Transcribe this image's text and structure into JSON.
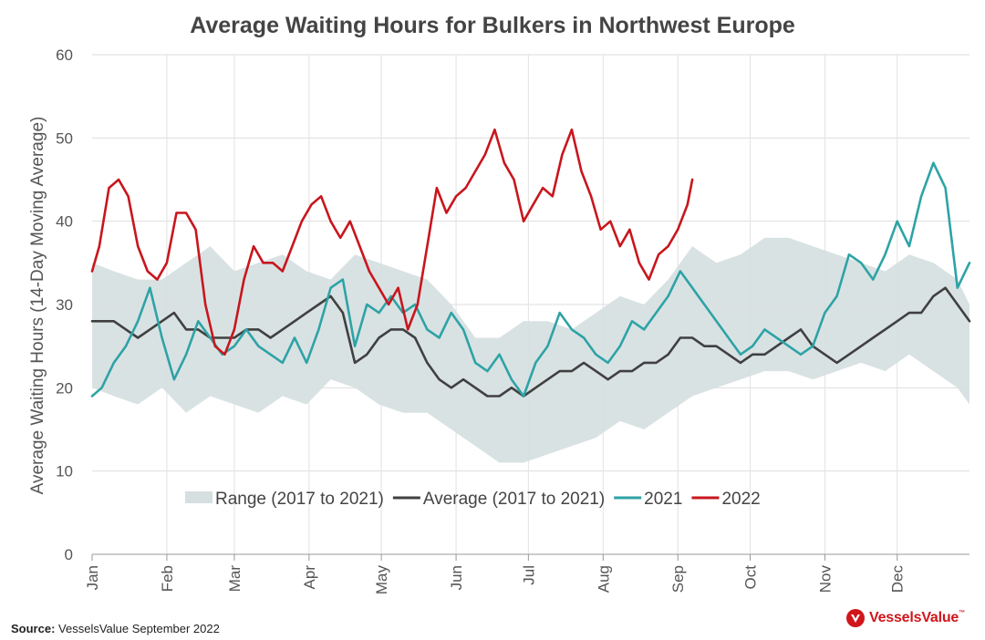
{
  "chart_data": {
    "type": "line",
    "title": "Average Waiting Hours for Bulkers in Northwest Europe",
    "ylabel": "Average Waiting Hours (14-Day Moving Average)",
    "xlabel": "",
    "ylim": [
      0,
      60
    ],
    "yticks": [
      0,
      10,
      20,
      30,
      40,
      50,
      60
    ],
    "xlim": [
      1,
      365
    ],
    "month_ticks": [
      {
        "label": "Jan",
        "day": 1
      },
      {
        "label": "Feb",
        "day": 32
      },
      {
        "label": "Mar",
        "day": 60
      },
      {
        "label": "Apr",
        "day": 91
      },
      {
        "label": "May",
        "day": 121
      },
      {
        "label": "Jun",
        "day": 152
      },
      {
        "label": "Jul",
        "day": 182
      },
      {
        "label": "Aug",
        "day": 213
      },
      {
        "label": "Sep",
        "day": 244
      },
      {
        "label": "Oct",
        "day": 274
      },
      {
        "label": "Nov",
        "day": 305
      },
      {
        "label": "Dec",
        "day": 335
      }
    ],
    "grid": true,
    "legend_position": "inside-bottom",
    "range": {
      "name": "Range (2017 to 2021)",
      "color": "#d5dfe0",
      "x": [
        1,
        10,
        20,
        30,
        40,
        50,
        60,
        70,
        80,
        90,
        100,
        110,
        120,
        130,
        140,
        150,
        160,
        170,
        180,
        190,
        200,
        210,
        220,
        230,
        240,
        250,
        260,
        270,
        280,
        290,
        300,
        310,
        320,
        330,
        340,
        350,
        360,
        365
      ],
      "low": [
        20,
        19,
        18,
        20,
        17,
        19,
        18,
        17,
        19,
        18,
        21,
        20,
        18,
        17,
        17,
        15,
        13,
        11,
        11,
        12,
        13,
        14,
        16,
        15,
        17,
        19,
        20,
        21,
        22,
        22,
        21,
        22,
        23,
        22,
        24,
        22,
        20,
        18
      ],
      "high": [
        35,
        34,
        33,
        33,
        35,
        37,
        34,
        35,
        36,
        34,
        33,
        36,
        35,
        34,
        33,
        30,
        26,
        26,
        28,
        28,
        27,
        29,
        31,
        30,
        33,
        37,
        35,
        36,
        38,
        38,
        37,
        36,
        35,
        34,
        36,
        35,
        33,
        30
      ]
    },
    "series": [
      {
        "name": "Average (2017 to 2021)",
        "color": "#404040",
        "x": [
          1,
          10,
          20,
          25,
          30,
          35,
          40,
          45,
          50,
          55,
          60,
          65,
          70,
          75,
          80,
          85,
          90,
          95,
          100,
          105,
          110,
          115,
          120,
          125,
          130,
          135,
          140,
          145,
          150,
          155,
          160,
          165,
          170,
          175,
          180,
          185,
          190,
          195,
          200,
          205,
          210,
          215,
          220,
          225,
          230,
          235,
          240,
          245,
          250,
          255,
          260,
          265,
          270,
          275,
          280,
          285,
          290,
          295,
          300,
          305,
          310,
          315,
          320,
          325,
          330,
          335,
          340,
          345,
          350,
          355,
          360,
          365
        ],
        "values": [
          28,
          28,
          26,
          27,
          28,
          29,
          27,
          27,
          26,
          26,
          26,
          27,
          27,
          26,
          27,
          28,
          29,
          30,
          31,
          29,
          23,
          24,
          26,
          27,
          27,
          26,
          23,
          21,
          20,
          21,
          20,
          19,
          19,
          20,
          19,
          20,
          21,
          22,
          22,
          23,
          22,
          21,
          22,
          22,
          23,
          23,
          24,
          26,
          26,
          25,
          25,
          24,
          23,
          24,
          24,
          25,
          26,
          27,
          25,
          24,
          23,
          24,
          25,
          26,
          27,
          28,
          29,
          29,
          31,
          32,
          30,
          28
        ]
      },
      {
        "name": "2021",
        "color": "#2ea3a6",
        "x": [
          1,
          5,
          10,
          15,
          20,
          25,
          30,
          35,
          40,
          45,
          50,
          55,
          60,
          65,
          70,
          75,
          80,
          85,
          90,
          95,
          100,
          105,
          110,
          115,
          120,
          125,
          130,
          135,
          140,
          145,
          150,
          155,
          160,
          165,
          170,
          175,
          180,
          185,
          190,
          195,
          200,
          205,
          210,
          215,
          220,
          225,
          230,
          235,
          240,
          245,
          250,
          255,
          260,
          265,
          270,
          275,
          280,
          285,
          290,
          295,
          300,
          305,
          310,
          315,
          320,
          325,
          330,
          335,
          340,
          345,
          350,
          355,
          360,
          365
        ],
        "values": [
          19,
          20,
          23,
          25,
          28,
          32,
          26,
          21,
          24,
          28,
          26,
          24,
          25,
          27,
          25,
          24,
          23,
          26,
          23,
          27,
          32,
          33,
          25,
          30,
          29,
          31,
          29,
          30,
          27,
          26,
          29,
          27,
          23,
          22,
          24,
          21,
          19,
          23,
          25,
          29,
          27,
          26,
          24,
          23,
          25,
          28,
          27,
          29,
          31,
          34,
          32,
          30,
          28,
          26,
          24,
          25,
          27,
          26,
          25,
          24,
          25,
          29,
          31,
          36,
          35,
          33,
          36,
          40,
          37,
          43,
          47,
          44,
          32,
          35
        ]
      },
      {
        "name": "2022",
        "color": "#c8161d",
        "x": [
          1,
          4,
          8,
          12,
          16,
          20,
          24,
          28,
          32,
          36,
          40,
          44,
          48,
          52,
          56,
          60,
          64,
          68,
          72,
          76,
          80,
          84,
          88,
          92,
          96,
          100,
          104,
          108,
          112,
          116,
          120,
          124,
          128,
          132,
          136,
          140,
          144,
          148,
          152,
          156,
          160,
          164,
          168,
          172,
          176,
          180,
          184,
          188,
          192,
          196,
          200,
          204,
          208,
          212,
          216,
          220,
          224,
          228,
          232,
          236,
          240,
          244,
          248,
          250
        ],
        "values": [
          34,
          37,
          44,
          45,
          43,
          37,
          34,
          33,
          35,
          41,
          41,
          39,
          30,
          25,
          24,
          27,
          33,
          37,
          35,
          35,
          34,
          37,
          40,
          42,
          43,
          40,
          38,
          40,
          37,
          34,
          32,
          30,
          32,
          27,
          30,
          37,
          44,
          41,
          43,
          44,
          46,
          48,
          51,
          47,
          45,
          40,
          42,
          44,
          43,
          48,
          51,
          46,
          43,
          39,
          40,
          37,
          39,
          35,
          33,
          36,
          37,
          39,
          42,
          45
        ]
      }
    ]
  },
  "footer": {
    "source_label": "Source:",
    "source_text": "VesselsValue September 2022",
    "logo_text": "VesselsValue",
    "logo_tm": "™"
  }
}
